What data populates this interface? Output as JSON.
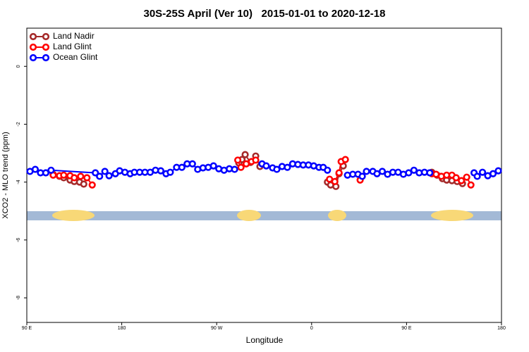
{
  "chart_data": {
    "type": "line",
    "title": "30S-25S April (Ver 10)   2015-01-01 to 2020-12-18",
    "xlabel": "Longitude",
    "ylabel": "XCO2 - MLO trend (ppm)",
    "xlim": [
      90,
      540
    ],
    "ylim": [
      -8.85,
      1.32
    ],
    "xticks": [
      {
        "value": 90,
        "label": "90 E"
      },
      180,
      {
        "value": 270,
        "label": "90 W"
      },
      {
        "value": 360,
        "label": "0"
      },
      {
        "value": 450,
        "label": "90 E"
      },
      {
        "value": 540,
        "label": "180"
      }
    ],
    "yticks": [
      0,
      -2,
      -4,
      -6,
      -8
    ],
    "legend": "top-left",
    "series": [
      {
        "name": "Land Nadir",
        "color": "#a52a2a",
        "x": [
          115,
          121,
          125,
          131,
          135,
          140,
          144,
          200,
          291,
          294,
          297,
          302,
          307,
          311,
          340,
          375,
          378,
          383,
          386,
          390,
          430,
          474,
          479,
          484,
          488,
          493,
          498,
          503
        ],
        "values": [
          -3.73,
          -3.8,
          -3.85,
          -3.93,
          -3.98,
          -4.0,
          -4.07,
          null,
          -3.34,
          -3.22,
          -3.05,
          -3.32,
          -3.1,
          -3.46,
          null,
          -4.0,
          -4.1,
          -4.15,
          -3.71,
          -3.44,
          null,
          -3.66,
          -3.76,
          -3.88,
          -3.93,
          -3.95,
          -3.98,
          -4.05
        ]
      },
      {
        "name": "Land Glint",
        "color": "#ff0000",
        "x": [
          115,
          121,
          125,
          131,
          135,
          141,
          147,
          152,
          220,
          290,
          293,
          298,
          303,
          307,
          340,
          377,
          382,
          386,
          388,
          392,
          400,
          406,
          440,
          474,
          478,
          483,
          488,
          493,
          497,
          502,
          507,
          511
        ],
        "values": [
          -3.76,
          -3.78,
          -3.76,
          -3.78,
          -3.85,
          -3.8,
          -3.85,
          -4.1,
          null,
          -3.24,
          -3.49,
          -3.37,
          -3.29,
          -3.24,
          null,
          -3.9,
          -3.98,
          -3.68,
          -3.29,
          -3.22,
          null,
          -3.93,
          null,
          -3.71,
          -3.73,
          -3.8,
          -3.76,
          -3.76,
          -3.85,
          -3.95,
          -3.83,
          -4.1
        ]
      },
      {
        "name": "Ocean Glint",
        "color": "#0000ff",
        "x": [
          93,
          98,
          103,
          108,
          113,
          155,
          159,
          164,
          168,
          174,
          178,
          183,
          188,
          192,
          197,
          202,
          207,
          212,
          217,
          222,
          226,
          232,
          237,
          242,
          247,
          252,
          257,
          262,
          267,
          272,
          277,
          282,
          287,
          300,
          313,
          317,
          323,
          327,
          332,
          337,
          342,
          347,
          352,
          357,
          362,
          367,
          371,
          375,
          385,
          394,
          399,
          404,
          408,
          412,
          418,
          422,
          427,
          432,
          437,
          442,
          447,
          452,
          457,
          462,
          467,
          472,
          490,
          514,
          517,
          522,
          527,
          532,
          537
        ],
        "values": [
          -3.63,
          -3.56,
          -3.68,
          -3.68,
          -3.59,
          -3.68,
          -3.8,
          -3.63,
          -3.78,
          -3.71,
          -3.61,
          -3.66,
          -3.71,
          -3.66,
          -3.66,
          -3.66,
          -3.66,
          -3.59,
          -3.61,
          -3.71,
          -3.66,
          -3.49,
          -3.49,
          -3.37,
          -3.37,
          -3.56,
          -3.51,
          -3.49,
          -3.44,
          -3.54,
          -3.59,
          -3.54,
          -3.56,
          null,
          -3.37,
          -3.44,
          -3.51,
          -3.56,
          -3.46,
          -3.49,
          -3.37,
          -3.39,
          -3.41,
          -3.41,
          -3.44,
          -3.49,
          -3.49,
          -3.59,
          null,
          -3.76,
          -3.73,
          -3.73,
          -3.8,
          -3.63,
          -3.63,
          -3.71,
          -3.63,
          -3.73,
          -3.66,
          -3.66,
          -3.73,
          -3.68,
          -3.59,
          -3.68,
          -3.66,
          -3.68,
          null,
          -3.68,
          -3.8,
          -3.66,
          -3.78,
          -3.71,
          -3.61
        ]
      }
    ]
  }
}
